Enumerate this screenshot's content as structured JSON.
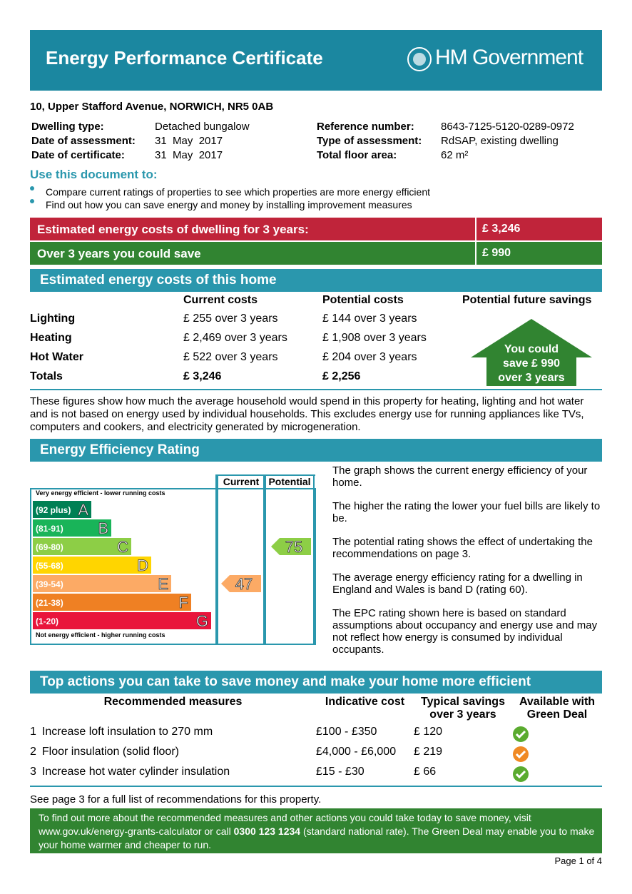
{
  "header": {
    "title": "Energy Performance Certificate",
    "brand": "HM Government"
  },
  "address": "10, Upper Stafford Avenue, NORWICH, NR5 0AB",
  "details": {
    "left": [
      [
        "Dwelling type:",
        "Detached bungalow"
      ],
      [
        "Date of assessment:",
        "31  May  2017"
      ],
      [
        "Date of certificate:",
        "31  May  2017"
      ]
    ],
    "right": [
      [
        "Reference number:",
        "8643-7125-5120-0289-0972"
      ],
      [
        "Type of assessment:",
        "RdSAP, existing dwelling"
      ],
      [
        "Total floor area:",
        "62 m²"
      ]
    ]
  },
  "use": {
    "title": "Use this document to:",
    "bullets": [
      "Compare current ratings of properties to see which properties are more energy efficient",
      "Find out how you can save energy and money by installing improvement measures"
    ]
  },
  "summary": [
    [
      "Estimated energy costs of dwelling for 3 years:",
      "£ 3,246"
    ],
    [
      "Over 3 years you could save",
      "£ 990"
    ]
  ],
  "costs": {
    "title": "Estimated energy costs of this home",
    "headers": [
      "Current costs",
      "Potential costs",
      "Potential future savings"
    ],
    "rows": [
      [
        "Lighting",
        "£ 255 over 3 years",
        "£ 144 over 3 years"
      ],
      [
        "Heating",
        "£ 2,469 over 3 years",
        "£ 1,908 over 3 years"
      ],
      [
        "Hot Water",
        "£ 522 over 3 years",
        "£ 204 over 3 years"
      ]
    ],
    "totals": [
      "Totals",
      "£ 3,246",
      "£ 2,256"
    ],
    "savings": [
      "You could",
      "save £ 990",
      "over 3 years"
    ],
    "note": "These figures show how much the average household would spend in this property for heating, lighting and hot water and is not based on energy used by individual households. This excludes energy use for running appliances like TVs, computers and cookers, and electricity generated by microgeneration."
  },
  "rating": {
    "title": "Energy Efficiency Rating",
    "top": "Very energy efficient - lower running costs",
    "bottom": "Not energy efficient - higher running costs",
    "columns": [
      "Current",
      "Potential"
    ],
    "bands": [
      {
        "range": "(92 plus)",
        "letter": "A",
        "color": "#008054"
      },
      {
        "range": "(81-91)",
        "letter": "B",
        "color": "#19b459"
      },
      {
        "range": "(69-80)",
        "letter": "C",
        "color": "#8dce46"
      },
      {
        "range": "(55-68)",
        "letter": "D",
        "color": "#ffd500"
      },
      {
        "range": "(39-54)",
        "letter": "E",
        "color": "#fcaa65"
      },
      {
        "range": "(21-38)",
        "letter": "F",
        "color": "#ef8023"
      },
      {
        "range": "(1-20)",
        "letter": "G",
        "color": "#e9153b"
      }
    ],
    "current": 47,
    "potential": 75,
    "text": [
      "The graph shows the current energy efficiency of your home.",
      "The higher the rating the lower your fuel bills are likely to be.",
      "The potential rating shows the effect of undertaking the recommendations on page 3.",
      "The average energy efficiency rating for a dwelling in England and Wales is band D (rating 60).",
      "The EPC rating shown here is based on standard assumptions about occupancy and energy use and may not reflect how energy is consumed by individual occupants."
    ]
  },
  "actions": {
    "title": "Top actions you can take to save money and make your home more efficient",
    "headers": [
      "Recommended measures",
      "Indicative cost",
      "Typical savings over 3 years",
      "Available with Green Deal"
    ],
    "rows": [
      {
        "number": 1,
        "measure": "Increase loft insulation to 270 mm",
        "cost": "£100 - £350",
        "savings": "£ 120",
        "color": "#5aab2f"
      },
      {
        "number": 2,
        "measure": "Floor insulation (solid floor)",
        "cost": "£4,000 - £6,000",
        "savings": "£ 219",
        "color": "#f08a24"
      },
      {
        "number": 3,
        "measure": "Increase hot water cylinder insulation",
        "cost": "£15 - £30",
        "savings": "£ 66",
        "color": "#5aab2f"
      }
    ],
    "see": "See page 3 for a full list of recommendations for this property.",
    "info": [
      "To find out more about the recommended measures and other actions you could take today to save money, visit www.gov.uk/energy-grants-calculator or call ",
      "0300 123 1234",
      " (standard national rate). The Green Deal may enable you to make your home warmer and cheaper to run."
    ]
  },
  "page": "Page 1 of 4"
}
